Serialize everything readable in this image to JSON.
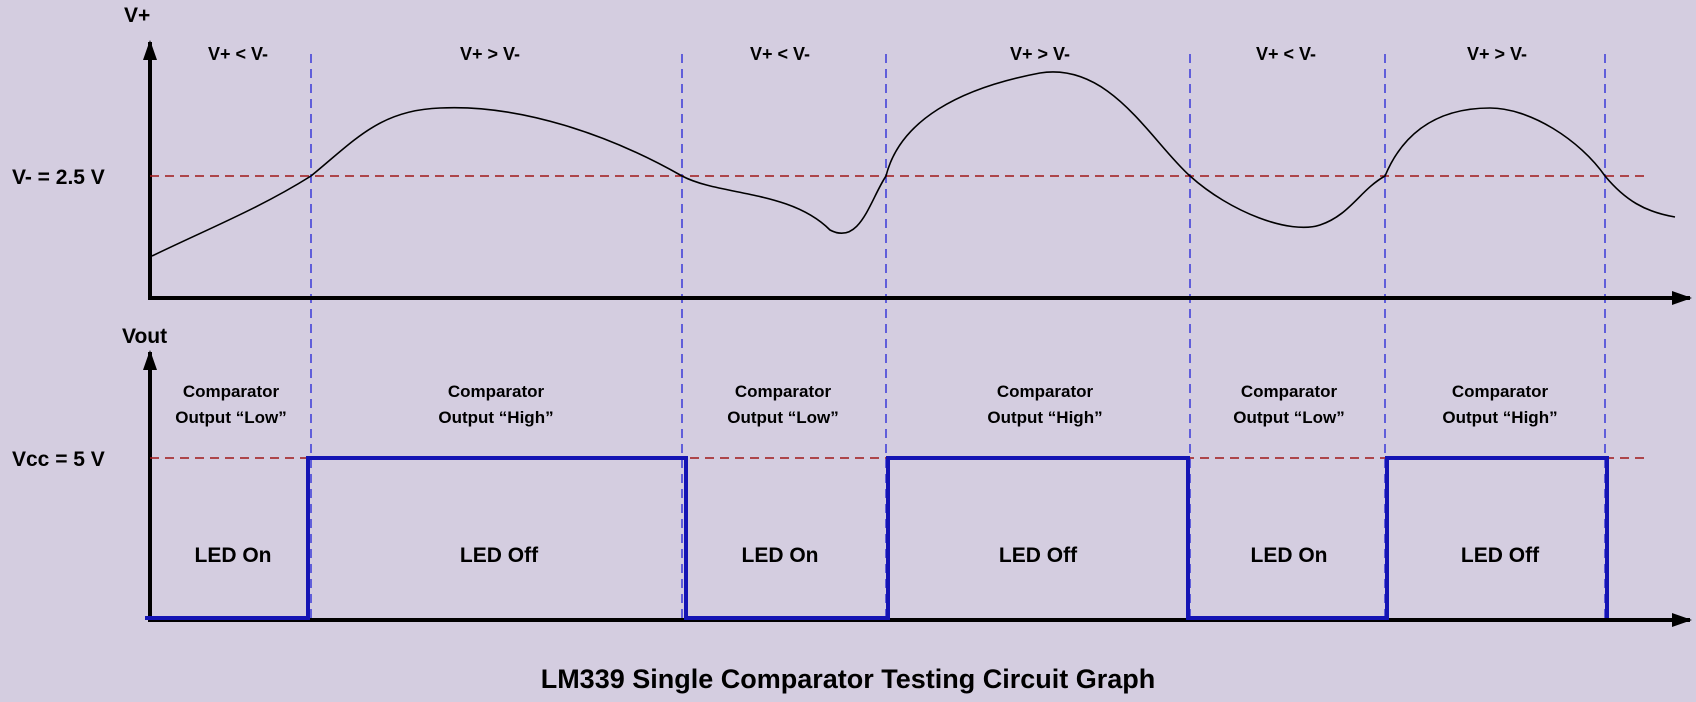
{
  "top_plot": {
    "y_axis_label": "V+",
    "ref_label": "V- = 2.5 V",
    "regions": [
      "V+ < V-",
      "V+ > V-",
      "V+ < V-",
      "V+ > V-",
      "V+ < V-",
      "V+ > V-"
    ]
  },
  "bottom_plot": {
    "y_axis_label": "Vout",
    "ref_label": "Vcc = 5 V",
    "states": [
      {
        "line1": "Comparator",
        "line2": "Output “Low”",
        "led": "LED On",
        "level": "low"
      },
      {
        "line1": "Comparator",
        "line2": "Output “High”",
        "led": "LED Off",
        "level": "high"
      },
      {
        "line1": "Comparator",
        "line2": "Output “Low”",
        "led": "LED On",
        "level": "low"
      },
      {
        "line1": "Comparator",
        "line2": "Output “High”",
        "led": "LED Off",
        "level": "high"
      },
      {
        "line1": "Comparator",
        "line2": "Output “Low”",
        "led": "LED On",
        "level": "low"
      },
      {
        "line1": "Comparator",
        "line2": "Output “High”",
        "led": "LED Off",
        "level": "high"
      }
    ]
  },
  "title": "LM339 Single Comparator Testing Circuit Graph",
  "colors": {
    "background": "#d4cde0",
    "axis": "#000000",
    "signal": "#000000",
    "reference_line": "#a01818",
    "divider": "#3a3ad8",
    "output_wave": "#1414b4"
  }
}
